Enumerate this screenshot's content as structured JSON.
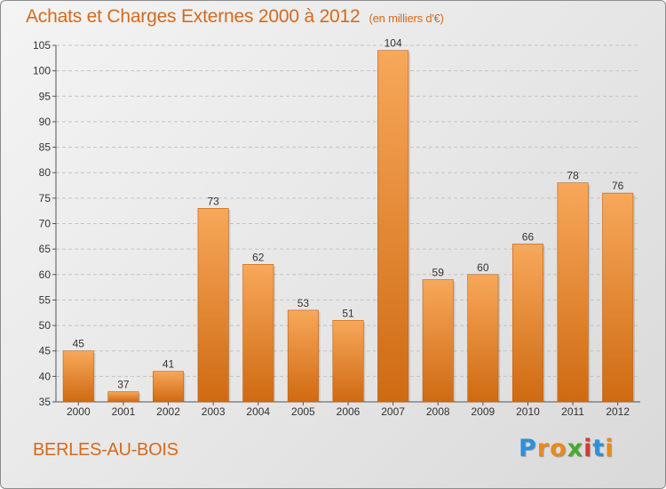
{
  "title": "Achats et Charges Externes 2000 à 2012",
  "unit_note": "(en milliers d'€)",
  "location": "BERLES-AU-BOIS",
  "brand": {
    "letters": [
      "P",
      "r",
      "o",
      "x",
      "i",
      "t",
      "i"
    ],
    "colors": [
      "#2f8fd8",
      "#e8891c",
      "#e8891c",
      "#4aa832",
      "#d63a2f",
      "#2f8fd8",
      "#e8891c"
    ]
  },
  "colors": {
    "bar_light": "#f7a85a",
    "bar_dark": "#cf6a12",
    "title": "#d46a1e"
  },
  "chart_data": {
    "type": "bar",
    "title": "Achats et Charges Externes 2000 à 2012",
    "subtitle": "(en milliers d'€)",
    "categories": [
      "2000",
      "2001",
      "2002",
      "2003",
      "2004",
      "2005",
      "2006",
      "2007",
      "2008",
      "2009",
      "2010",
      "2011",
      "2012"
    ],
    "values": [
      45,
      37,
      41,
      73,
      62,
      53,
      51,
      104,
      59,
      60,
      66,
      78,
      76
    ],
    "ylim": [
      35,
      105
    ],
    "yticks": [
      35,
      40,
      45,
      50,
      55,
      60,
      65,
      70,
      75,
      80,
      85,
      90,
      95,
      100,
      105
    ],
    "grid": true,
    "xlabel": "",
    "ylabel": ""
  }
}
